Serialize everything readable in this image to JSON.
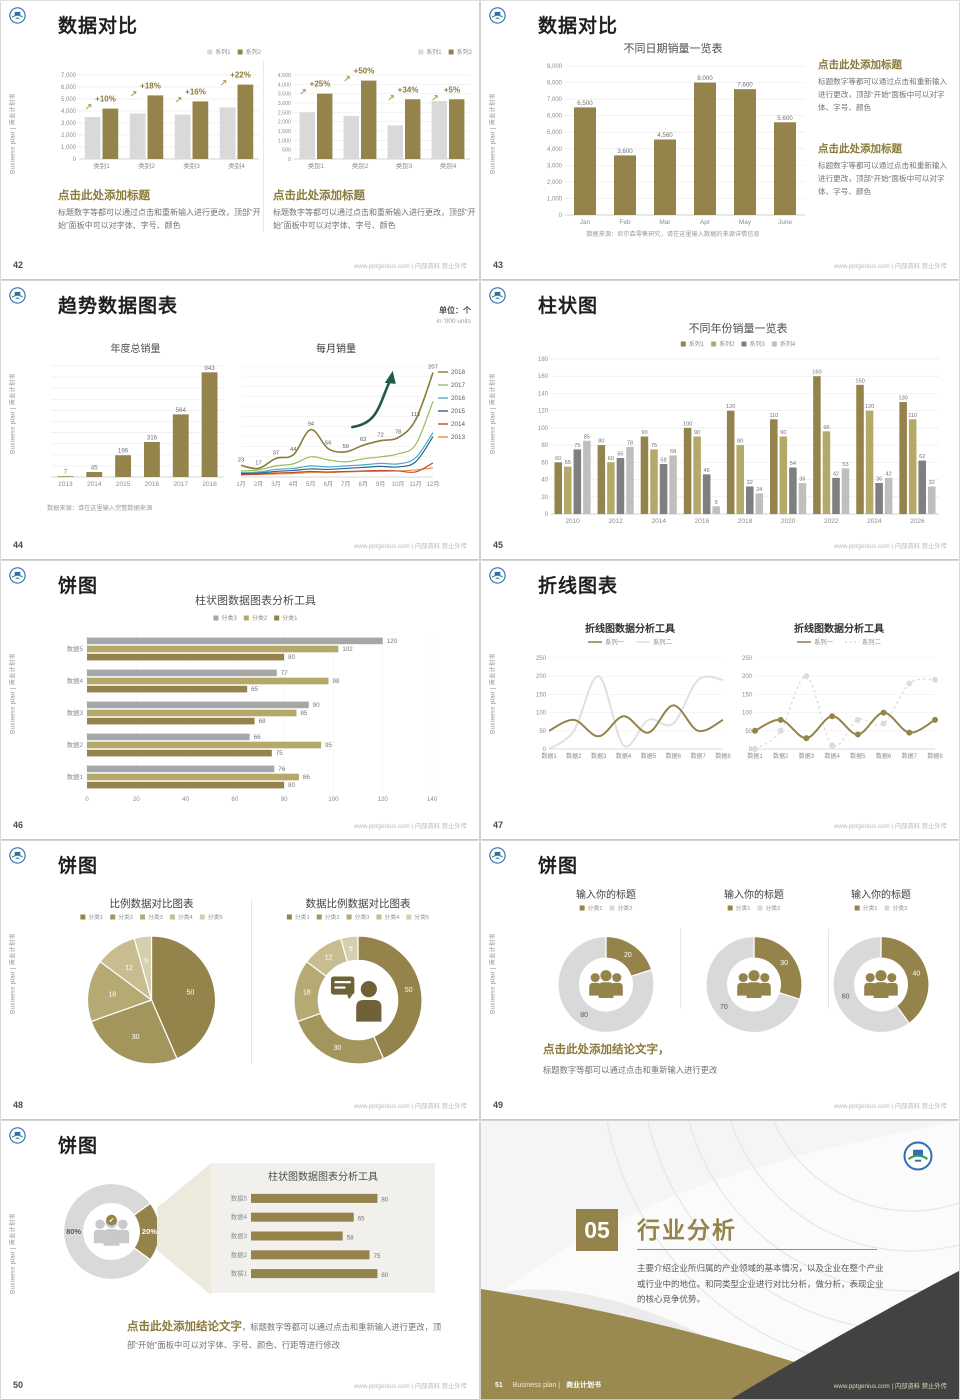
{
  "common": {
    "side_label": "Business plan | 商业计划书",
    "footer_site": "www.pptgenius.com | 内部资料 禁止外传"
  },
  "slides": {
    "s42": {
      "page": "42",
      "title": "数据对比",
      "left_block": {
        "heading": "点击此处添加标题",
        "body": "标题数字等都可以通过点击和重新输入进行更改，顶部“开始”面板中可以对字体、字号、颜色"
      },
      "right_block": {
        "heading": "点击此处添加标题",
        "body": "标题数字等都可以通过点击和重新输入进行更改，顶部“开始”面板中可以对字体、字号、颜色"
      }
    },
    "s43": {
      "page": "43",
      "title": "数据对比",
      "block1": {
        "heading": "点击此处添加标题",
        "body": "标题数字等都可以通过点击和重新输入进行更改，顶部“开始”面板中可以对字体、字号、颜色"
      },
      "block2": {
        "heading": "点击此处添加标题",
        "body": "标题数字等都可以通过点击和重新输入进行更改，顶部“开始”面板中可以对字体、字号、颜色"
      }
    },
    "s44": {
      "page": "44",
      "title": "趋势数据图表",
      "unit_line1": "单位：个",
      "unit_line2": "in '000 units",
      "source": "数据来源：请在这里输入完整数据来源"
    },
    "s45": {
      "page": "45",
      "title": "柱状图"
    },
    "s46": {
      "page": "46",
      "title": "饼图"
    },
    "s47": {
      "page": "47",
      "title": "折线图表"
    },
    "s48": {
      "page": "48",
      "title": "饼图"
    },
    "s49": {
      "page": "49",
      "title": "饼图",
      "conclusion_heading": "点击此处添加结论文字，",
      "conclusion_body": "标题数字等都可以通过点击和重新输入进行更改"
    },
    "s50": {
      "page": "50",
      "title": "饼图",
      "conclusion_heading": "点击此处添加结论文字",
      "conclusion_body": "，标题数字等都可以通过点击和重新输入进行更改，顶部“开始”面板中可以对字体、字号、颜色、行距等进行修改"
    },
    "s51": {
      "page": "51",
      "number": "05",
      "title": "行业分析",
      "body": "主要介绍企业所归属的产业领域的基本情况，以及企业在整个产业或行业中的地位。和同类型企业进行对比分析，做分析，表现企业的核心竞争优势。",
      "footer_en": "Business plan |",
      "footer_cn": "商业计划书"
    }
  },
  "chart_data": [
    {
      "type": "bar",
      "slide": "42",
      "title": "",
      "categories": [
        "类别1",
        "类别2",
        "类别3",
        "类别4"
      ],
      "series": [
        {
          "name": "系列1",
          "color": "#d9d9d9",
          "values": [
            3500,
            3800,
            3700,
            4300
          ]
        },
        {
          "name": "系列2",
          "color": "#94834a",
          "values": [
            4200,
            5300,
            4800,
            6200
          ]
        }
      ],
      "annotations": [
        "+10%",
        "+18%",
        "+16%",
        "+22%"
      ],
      "ylim": [
        0,
        7000
      ],
      "ystep": 1000,
      "legend_position": "top-right",
      "grid": true
    },
    {
      "type": "bar",
      "slide": "42",
      "title": "",
      "categories": [
        "类别1",
        "类别2",
        "类别3",
        "类别4"
      ],
      "series": [
        {
          "name": "系列1",
          "color": "#d9d9d9",
          "values": [
            2500,
            2300,
            1800,
            3100
          ]
        },
        {
          "name": "系列2",
          "color": "#94834a",
          "values": [
            3500,
            4200,
            3200,
            3200
          ]
        }
      ],
      "annotations": [
        "+25%",
        "+50%",
        "+34%",
        "+5%"
      ],
      "ylim": [
        0,
        4500
      ],
      "ystep": 500,
      "legend_position": "top-right",
      "grid": true
    },
    {
      "type": "bar",
      "slide": "43",
      "title": "不同日期销量一览表",
      "title_size": 11,
      "categories": [
        "Jan",
        "Feb",
        "Mar",
        "Apr",
        "May",
        "June"
      ],
      "series": [
        {
          "name": "销量",
          "color": "#94834a",
          "values": [
            6500,
            3600,
            4560,
            8000,
            7600,
            5600
          ]
        }
      ],
      "data_labels": [
        "6,500",
        "3,600",
        "4,560",
        "8,000",
        "7,600",
        "5,600"
      ],
      "ylim": [
        0,
        9000
      ],
      "ystep": 1000,
      "grid": true,
      "source": "数据来源：尼尔森零售研究，请在这里输入数据的来源详情信息"
    },
    {
      "type": "bar",
      "slide": "44",
      "title": "年度总销量",
      "title_size": 10,
      "categories": [
        "2013",
        "2014",
        "2015",
        "2016",
        "2017",
        "2018"
      ],
      "series": [
        {
          "name": "销量",
          "color": "#94834a",
          "values": [
            7,
            45,
            196,
            316,
            564,
            943
          ]
        }
      ],
      "data_labels": true,
      "ylim": [
        0,
        1000
      ],
      "ystep": 100,
      "show_yticks": false,
      "grid": true
    },
    {
      "type": "line",
      "slide": "44",
      "title": "每月销量",
      "title_size": 10,
      "x": [
        "1月",
        "2月",
        "3月",
        "4月",
        "5月",
        "6月",
        "7月",
        "8月",
        "9月",
        "10月",
        "11月",
        "12月"
      ],
      "series": [
        {
          "name": "2018",
          "color": "#8a7a3b",
          "values": [
            23,
            17,
            37,
            44,
            94,
            56,
            50,
            63,
            72,
            78,
            113,
            207
          ],
          "labels": true,
          "width": 1.6
        },
        {
          "name": "2017",
          "color": "#9bbb59",
          "values": [
            12,
            14,
            22,
            26,
            40,
            34,
            30,
            36,
            40,
            46,
            64,
            150
          ]
        },
        {
          "name": "2016",
          "color": "#4bacc6",
          "values": [
            9,
            10,
            15,
            17,
            22,
            20,
            22,
            24,
            27,
            26,
            38,
            88
          ]
        },
        {
          "name": "2015",
          "color": "#2e6391",
          "values": [
            7,
            8,
            11,
            13,
            16,
            15,
            17,
            19,
            21,
            20,
            30,
            80
          ]
        },
        {
          "name": "2014",
          "color": "#bf4b32",
          "values": [
            5,
            6,
            8,
            9,
            11,
            10,
            11,
            12,
            13,
            12,
            10,
            28
          ]
        },
        {
          "name": "2013",
          "color": "#e8923f",
          "values": [
            4,
            5,
            6,
            7,
            9,
            9,
            10,
            11,
            11,
            12,
            14,
            18
          ]
        }
      ],
      "ylim": [
        0,
        220
      ],
      "ystep": 20,
      "show_yticks": false,
      "legend_position": "right",
      "grid": true,
      "arrow": true,
      "arrow_color": "#1d5c40"
    },
    {
      "type": "bar",
      "slide": "45",
      "title": "不同年份销量一览表",
      "title_size": 11,
      "categories": [
        "2010",
        "2012",
        "2014",
        "2016",
        "2018",
        "2020",
        "2022",
        "2024",
        "2026"
      ],
      "series": [
        {
          "name": "系列1",
          "color": "#94834a",
          "values": [
            60,
            80,
            90,
            100,
            120,
            110,
            160,
            150,
            130
          ]
        },
        {
          "name": "系列2",
          "color": "#b5a96a",
          "values": [
            55,
            60,
            75,
            90,
            80,
            90,
            96,
            120,
            110
          ]
        },
        {
          "name": "系列3",
          "color": "#7f7f7f",
          "values": [
            75,
            65,
            58,
            46,
            32,
            54,
            42,
            36,
            62
          ]
        },
        {
          "name": "系列4",
          "color": "#bfbfbf",
          "values": [
            85,
            78,
            68,
            9,
            24,
            36,
            53,
            42,
            32
          ]
        }
      ],
      "data_labels": true,
      "ylim": [
        0,
        180
      ],
      "ystep": 20,
      "legend_position": "top",
      "grid": true
    },
    {
      "type": "hbar",
      "slide": "46",
      "title": "柱状图数据图表分析工具",
      "title_size": 11,
      "categories": [
        "数据5",
        "数据4",
        "数据3",
        "数据2",
        "数据1"
      ],
      "series": [
        {
          "name": "分类3",
          "color": "#a6a6a6",
          "values": [
            120,
            77,
            90,
            66,
            76
          ]
        },
        {
          "name": "分类2",
          "color": "#b5a96a",
          "values": [
            102,
            98,
            85,
            95,
            86
          ]
        },
        {
          "name": "分类1",
          "color": "#94834a",
          "values": [
            80,
            65,
            68,
            75,
            80
          ]
        }
      ],
      "data_labels": true,
      "xlim": [
        0,
        140
      ],
      "xstep": 20,
      "legend_position": "top"
    },
    {
      "type": "line",
      "slide": "47",
      "title": "折线图数据分析工具",
      "title_bold": true,
      "title_size": 10,
      "x": [
        "数据1",
        "数据2",
        "数据3",
        "数据4",
        "数据5",
        "数据6",
        "数据7",
        "数据8"
      ],
      "series": [
        {
          "name": "系列一",
          "color": "#94834a",
          "values": [
            50,
            80,
            35,
            90,
            45,
            120,
            50,
            80
          ],
          "width": 2
        },
        {
          "name": "系列二",
          "color": "#e0e0e0",
          "values": [
            0,
            50,
            200,
            10,
            80,
            70,
            190,
            190
          ],
          "width": 2
        }
      ],
      "ylim": [
        0,
        250
      ],
      "ystep": 50,
      "legend_position": "top",
      "smooth": true,
      "grid": true
    },
    {
      "type": "line",
      "slide": "47",
      "title": "折线图数据分析工具",
      "title_bold": true,
      "title_size": 10,
      "x": [
        "数据1",
        "数据2",
        "数据3",
        "数据4",
        "数据5",
        "数据6",
        "数据7",
        "数据8"
      ],
      "series": [
        {
          "name": "系列一",
          "color": "#94834a",
          "values": [
            50,
            80,
            30,
            90,
            40,
            100,
            45,
            80
          ],
          "width": 2,
          "markers": true
        },
        {
          "name": "系列二",
          "color": "#dcdcdc",
          "values": [
            0,
            50,
            200,
            10,
            80,
            70,
            180,
            190
          ],
          "width": 1.4,
          "markers": true,
          "dashed": true
        }
      ],
      "ylim": [
        0,
        250
      ],
      "ystep": 50,
      "legend_position": "top",
      "smooth": true,
      "grid": true
    },
    {
      "type": "pie",
      "slide": "48",
      "title": "比例数据对比图表",
      "title_size": 10.5,
      "labels": [
        "分类1",
        "分类2",
        "分类3",
        "分类4",
        "分类5"
      ],
      "values": [
        50,
        30,
        18,
        12,
        5
      ],
      "colors": [
        "#94834a",
        "#a3965c",
        "#b5aa74",
        "#c7bd90",
        "#d6cfae"
      ]
    },
    {
      "type": "donut",
      "slide": "48",
      "title": "数据比例数据对比图表",
      "title_size": 10.5,
      "labels": [
        "分类1",
        "分类2",
        "分类3",
        "分类4",
        "分类5"
      ],
      "values": [
        50,
        30,
        18,
        12,
        5
      ],
      "inner": 0.62,
      "colors": [
        "#94834a",
        "#a3965c",
        "#b5aa74",
        "#c7bd90",
        "#d6cfae"
      ],
      "center_icon": "presenter-speech-icon"
    },
    {
      "type": "donut",
      "slide": "49",
      "title": "输入你的标题",
      "title_size": 10,
      "labels": [
        "分类1",
        "分类2"
      ],
      "values": [
        20,
        80
      ],
      "inner": 0.55,
      "radius": 48,
      "colors": [
        "#94834a",
        "#d9d9d9"
      ],
      "center_icon": "people-group-icon"
    },
    {
      "type": "donut",
      "slide": "49",
      "title": "输入你的标题",
      "title_size": 10,
      "labels": [
        "分类1",
        "分类2"
      ],
      "values": [
        30,
        70
      ],
      "inner": 0.55,
      "radius": 48,
      "colors": [
        "#94834a",
        "#d9d9d9"
      ],
      "center_icon": "people-group-icon"
    },
    {
      "type": "donut",
      "slide": "49",
      "title": "输入你的标题",
      "title_size": 10,
      "labels": [
        "分类1",
        "分类2"
      ],
      "values": [
        40,
        60
      ],
      "inner": 0.55,
      "radius": 48,
      "colors": [
        "#94834a",
        "#d9d9d9"
      ],
      "center_icon": "people-group-icon"
    },
    {
      "type": "donut",
      "slide": "50",
      "values": [
        20,
        80
      ],
      "value_labels": [
        "20%",
        "80%"
      ],
      "inner": 0.58,
      "radius": 48,
      "start_angle": 54,
      "label_bold": true,
      "label_size": 7.5,
      "colors": [
        "#94834a",
        "#d9d9d9"
      ],
      "center_icon": "people-check-icon"
    },
    {
      "type": "hbar",
      "slide": "50",
      "title": "柱状图数据图表分析工具",
      "title_size": 10,
      "categories": [
        "数据5",
        "数据4",
        "数据3",
        "数据2",
        "数据1"
      ],
      "series": [
        {
          "name": "数据",
          "color": "#94834a",
          "values": [
            80,
            65,
            58,
            75,
            80
          ]
        }
      ],
      "data_labels": true,
      "xlim": [
        0,
        100
      ],
      "panel": true
    }
  ]
}
